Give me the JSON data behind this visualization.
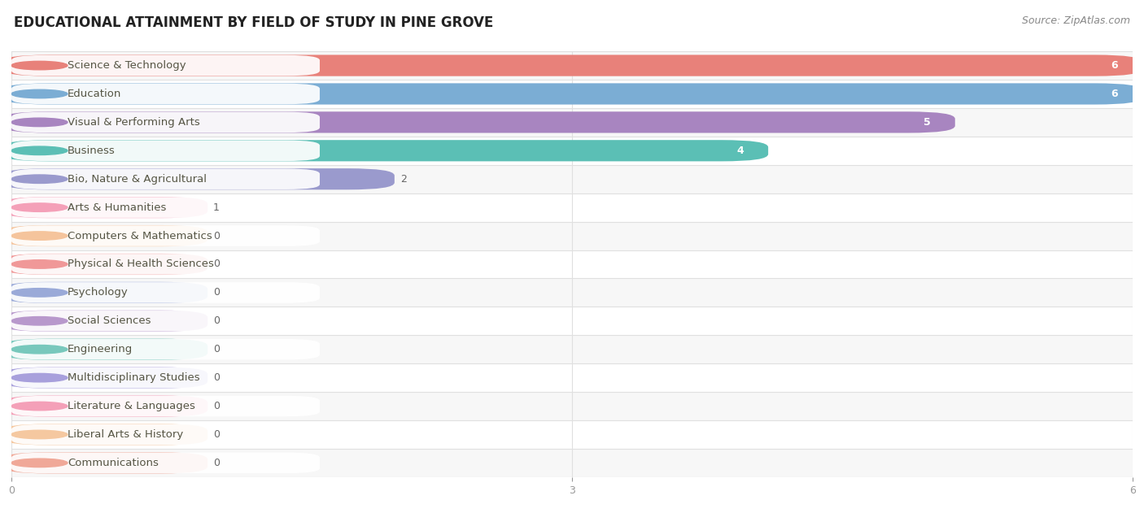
{
  "title": "EDUCATIONAL ATTAINMENT BY FIELD OF STUDY IN PINE GROVE",
  "source": "Source: ZipAtlas.com",
  "categories": [
    "Science & Technology",
    "Education",
    "Visual & Performing Arts",
    "Business",
    "Bio, Nature & Agricultural",
    "Arts & Humanities",
    "Computers & Mathematics",
    "Physical & Health Sciences",
    "Psychology",
    "Social Sciences",
    "Engineering",
    "Multidisciplinary Studies",
    "Literature & Languages",
    "Liberal Arts & History",
    "Communications"
  ],
  "values": [
    6,
    6,
    5,
    4,
    2,
    1,
    0,
    0,
    0,
    0,
    0,
    0,
    0,
    0,
    0
  ],
  "bar_colors": [
    "#E8817A",
    "#7BADD4",
    "#A885C0",
    "#5BBFB5",
    "#9A9ACD",
    "#F4A0B8",
    "#F5C49C",
    "#F09898",
    "#9AAAD8",
    "#B898CC",
    "#78C8BC",
    "#A8A0DC",
    "#F4A0B8",
    "#F5C8A0",
    "#F0A898"
  ],
  "min_bar_width": 1.0,
  "xlim": [
    0,
    6
  ],
  "xticks": [
    0,
    3,
    6
  ],
  "row_bg_color": "#f7f7f7",
  "row_alt_bg_color": "#ffffff",
  "separator_color": "#e0e0e0",
  "title_fontsize": 12,
  "source_fontsize": 9,
  "label_fontsize": 9.5,
  "value_fontsize": 9
}
